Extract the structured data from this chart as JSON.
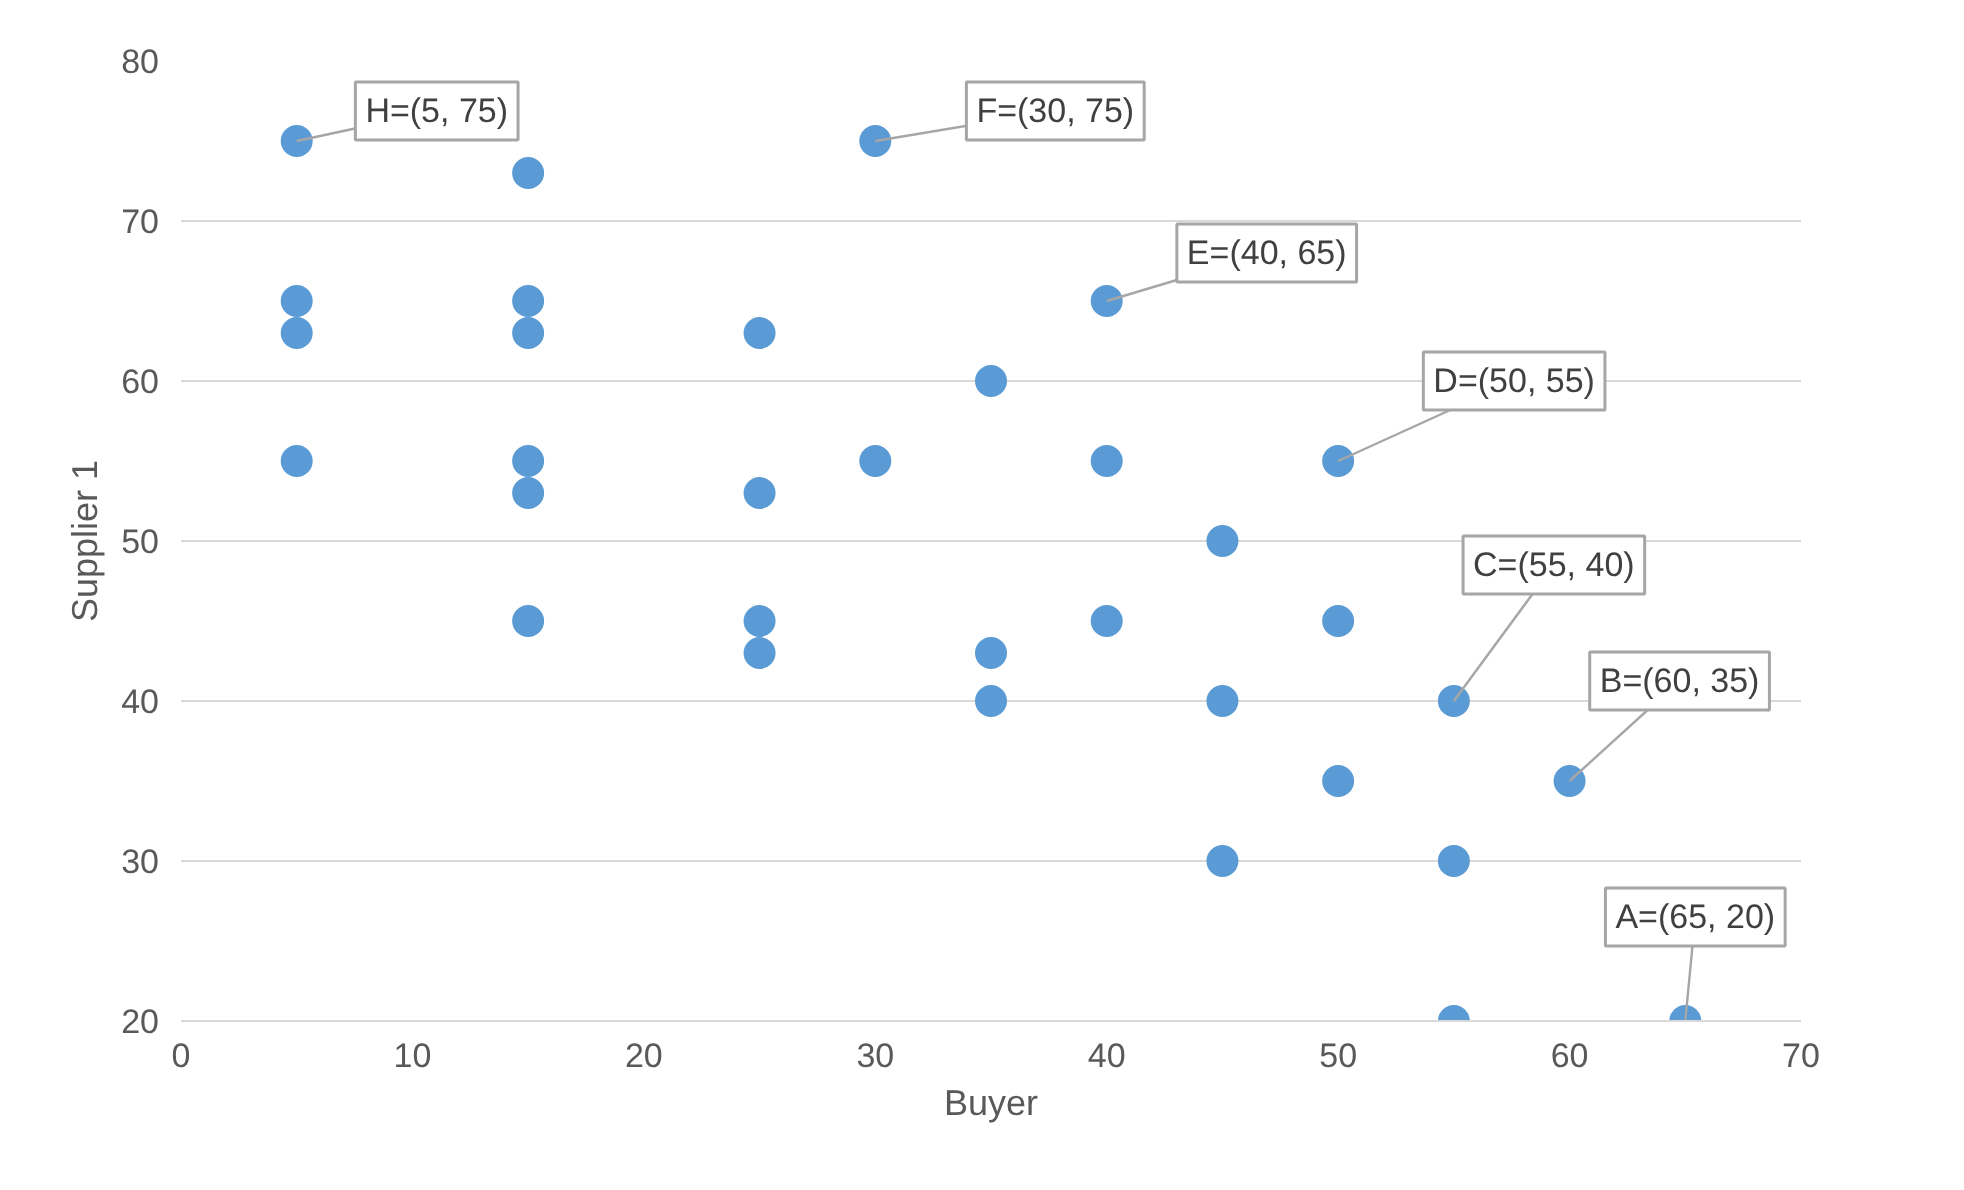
{
  "chart_data": {
    "type": "scatter",
    "xlabel": "Buyer",
    "ylabel": "Supplier 1",
    "x": [
      5,
      5,
      5,
      5,
      15,
      15,
      15,
      15,
      15,
      15,
      25,
      25,
      25,
      25,
      30,
      30,
      35,
      35,
      35,
      40,
      40,
      40,
      45,
      45,
      45,
      50,
      50,
      50,
      55,
      55,
      55,
      60,
      65
    ],
    "values": [
      75,
      65,
      63,
      55,
      73,
      65,
      63,
      55,
      53,
      45,
      63,
      53,
      45,
      43,
      75,
      55,
      60,
      43,
      40,
      65,
      55,
      45,
      50,
      40,
      30,
      55,
      45,
      35,
      40,
      30,
      20,
      35,
      20
    ],
    "color": "#5b9bd5",
    "marker": "circle",
    "grid": "y",
    "xlim": [
      0,
      70
    ],
    "xticks": [
      0,
      10,
      20,
      30,
      40,
      50,
      60,
      70
    ],
    "ylim": [
      20,
      80
    ],
    "yticks": [
      20,
      30,
      40,
      50,
      60,
      70,
      80
    ],
    "annotations": [
      {
        "text": "H=(5, 75)",
        "x": 5,
        "y": 75
      },
      {
        "text": "F=(30, 75)",
        "x": 30,
        "y": 75
      },
      {
        "text": "E=(40, 65)",
        "x": 40,
        "y": 65
      },
      {
        "text": "D=(50, 55)",
        "x": 50,
        "y": 55
      },
      {
        "text": "C=(55, 40)",
        "x": 55,
        "y": 40
      },
      {
        "text": "B=(60, 35)",
        "x": 60,
        "y": 35
      },
      {
        "text": "A=(65, 20)",
        "x": 65,
        "y": 20
      }
    ]
  }
}
